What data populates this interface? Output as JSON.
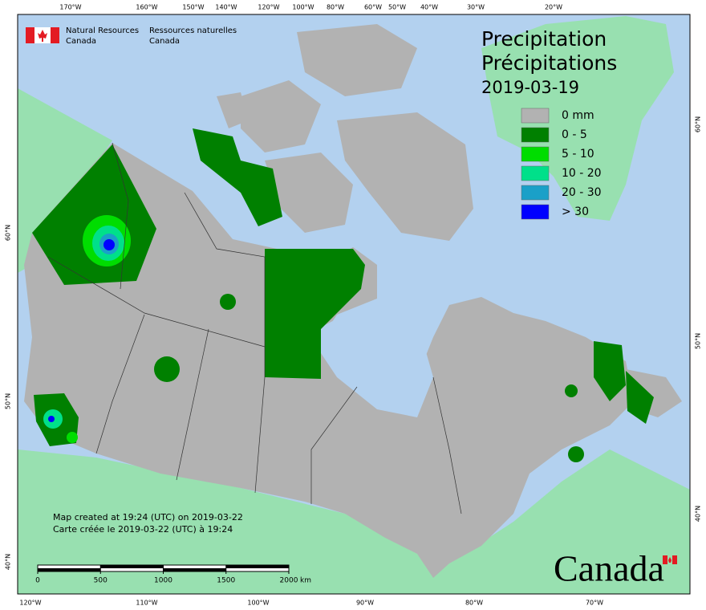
{
  "agency": {
    "en": "Natural Resources",
    "en_country": "Canada",
    "fr": "Ressources naturelles",
    "fr_country": "Canada"
  },
  "title": {
    "en": "Precipitation",
    "fr": "Précipitations",
    "date": "2019-03-19"
  },
  "legend": [
    {
      "label": "0 mm",
      "color": "#b2b2b2"
    },
    {
      "label": "0 - 5",
      "color": "#008000"
    },
    {
      "label": "5 - 10",
      "color": "#00dd00"
    },
    {
      "label": "10 - 20",
      "color": "#00e08a"
    },
    {
      "label": "20 - 30",
      "color": "#1aa0c8"
    },
    {
      "label": "> 30",
      "color": "#0000ff"
    }
  ],
  "graticule": {
    "top": [
      "170°W",
      "160°W",
      "150°W",
      "140°W",
      "120°W",
      "100°W",
      "80°W",
      "60°W",
      "50°W",
      "40°W",
      "30°W",
      "20°W"
    ],
    "bottom": [
      "120°W",
      "110°W",
      "100°W",
      "90°W",
      "80°W",
      "70°W"
    ],
    "left": [
      "60°N",
      "50°N",
      "40°N"
    ],
    "right": [
      "60°N",
      "50°N",
      "40°N"
    ]
  },
  "credits": {
    "en": "Map created at 19:24 (UTC) on 2019-03-22",
    "fr": "Carte créée le 2019-03-22 (UTC) à 19:24"
  },
  "scale_bar": {
    "ticks": [
      0,
      500,
      1000,
      1500,
      2000
    ],
    "unit": "km"
  },
  "wordmark": "Canada"
}
